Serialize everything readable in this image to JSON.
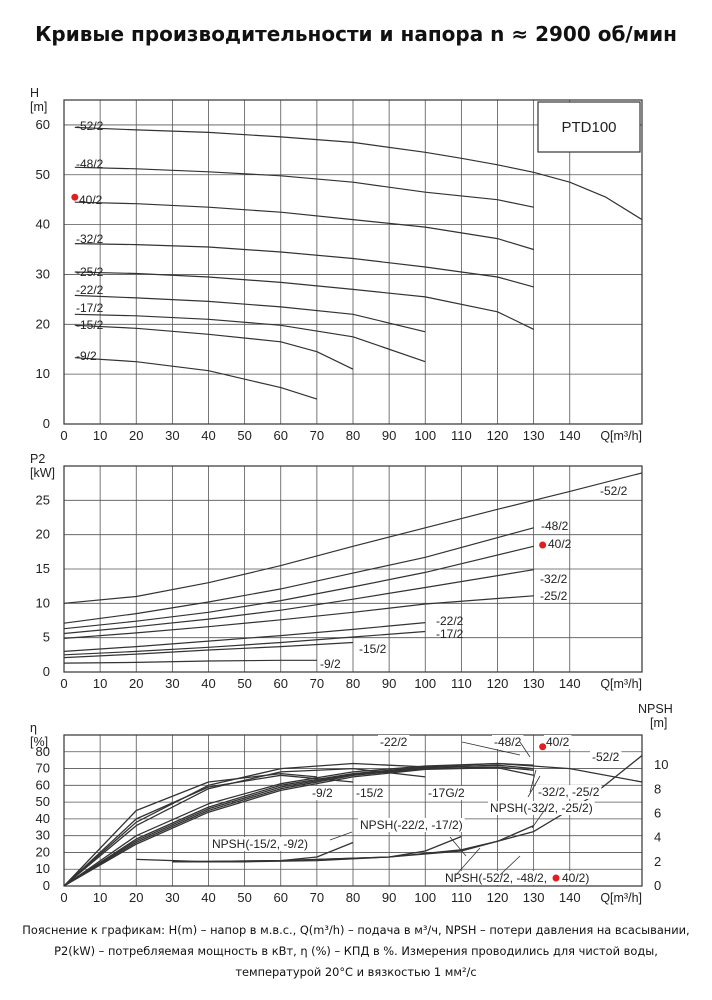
{
  "page_title": "Кривые производительности и напора n ≈ 2900 об/мин",
  "footnote": [
    "Пояснение к графикам: H(m) – напор в м.в.с., Q(m³/h) – подача в м³/ч, NPSH – потери давления на всасывании,",
    "P2(kW) – потребляемая мощность в кВт, η (%) – КПД в %. Измерения проводились для чистой воды,",
    "температурой 20°C и вязкостью 1 мм²/с"
  ],
  "colors": {
    "curve": "#333333",
    "grid": "#555555",
    "highlight": "#e02020"
  },
  "chart_data": [
    {
      "type": "line",
      "panel": "head",
      "ylabel": "H",
      "yunit": "[m]",
      "xlabel": "Q[m³/h]",
      "box_label": "PTD100",
      "xlim": [
        0,
        160
      ],
      "ylim": [
        0,
        65
      ],
      "x_ticks": [
        0,
        10,
        20,
        30,
        40,
        50,
        60,
        70,
        80,
        90,
        100,
        110,
        120,
        130,
        140
      ],
      "y_ticks": [
        0,
        10,
        20,
        30,
        40,
        50,
        60
      ],
      "grid": true,
      "highlight": {
        "label": "40/2",
        "x": 3,
        "y": 45.5
      },
      "series": [
        {
          "name": "-52/2",
          "label": "-52/2",
          "x": [
            3,
            20,
            40,
            60,
            80,
            100,
            110,
            120,
            130,
            140,
            150,
            160
          ],
          "y": [
            59.5,
            59,
            58.5,
            57.6,
            56.5,
            54.5,
            53.3,
            52,
            50.5,
            48.5,
            45.5,
            41
          ]
        },
        {
          "name": "-48/2",
          "label": "-48/2",
          "x": [
            3,
            20,
            40,
            60,
            80,
            100,
            120,
            130
          ],
          "y": [
            51.5,
            51.2,
            50.6,
            49.8,
            48.5,
            46.5,
            45,
            43.5
          ]
        },
        {
          "name": "40/2",
          "label": "40/2",
          "x": [
            3,
            20,
            40,
            60,
            80,
            100,
            120,
            130
          ],
          "y": [
            44.5,
            44.2,
            43.5,
            42.5,
            41,
            39.5,
            37.2,
            35
          ]
        },
        {
          "name": "-32/2",
          "label": "-32/2",
          "x": [
            3,
            20,
            40,
            60,
            80,
            100,
            120,
            130
          ],
          "y": [
            36.2,
            36,
            35.5,
            34.5,
            33.2,
            31.5,
            29.5,
            27.5
          ]
        },
        {
          "name": "-25/2",
          "label": "-25/2",
          "x": [
            3,
            20,
            40,
            60,
            80,
            100,
            120,
            130
          ],
          "y": [
            30.5,
            30.2,
            29.5,
            28.4,
            27,
            25.5,
            22.5,
            19
          ]
        },
        {
          "name": "-22/2",
          "label": "-22/2",
          "x": [
            3,
            20,
            40,
            60,
            80,
            100
          ],
          "y": [
            25.8,
            25.3,
            24.6,
            23.5,
            22,
            18.5
          ]
        },
        {
          "name": "-17/2",
          "label": "-17/2",
          "x": [
            3,
            20,
            40,
            60,
            80,
            100
          ],
          "y": [
            22,
            21.7,
            21,
            19.8,
            17.5,
            12.5
          ]
        },
        {
          "name": "-15/2",
          "label": "-15/2",
          "x": [
            3,
            20,
            40,
            60,
            70,
            80
          ],
          "y": [
            19.8,
            19.2,
            18,
            16.5,
            14.5,
            11
          ]
        },
        {
          "name": "-9/2",
          "label": "-9/2",
          "x": [
            3,
            20,
            40,
            60,
            70
          ],
          "y": [
            13.3,
            12.5,
            10.7,
            7.3,
            5
          ]
        }
      ]
    },
    {
      "type": "line",
      "panel": "power",
      "ylabel": "P2",
      "yunit": "[kW]",
      "xlabel": "Q[m³/h]",
      "xlim": [
        0,
        160
      ],
      "ylim": [
        0,
        30
      ],
      "x_ticks": [
        0,
        10,
        20,
        30,
        40,
        50,
        60,
        70,
        80,
        90,
        100,
        110,
        120,
        130,
        140
      ],
      "y_ticks": [
        0,
        5,
        10,
        15,
        20,
        25
      ],
      "grid": true,
      "highlight": {
        "label": "40/2",
        "x": 132.5,
        "y": 18.5
      },
      "series": [
        {
          "name": "-52/2",
          "label": "-52/2",
          "x": [
            0,
            20,
            40,
            60,
            80,
            100,
            120,
            140,
            160
          ],
          "y": [
            10,
            11,
            13,
            15.5,
            18.3,
            21,
            23.7,
            26.3,
            29
          ]
        },
        {
          "name": "-48/2",
          "label": "-48/2",
          "x": [
            0,
            20,
            40,
            60,
            80,
            100,
            130
          ],
          "y": [
            7.1,
            8.5,
            10.2,
            12.1,
            14.4,
            16.7,
            21
          ]
        },
        {
          "name": "40/2",
          "label": "40/2",
          "x": [
            0,
            20,
            40,
            60,
            80,
            100,
            130
          ],
          "y": [
            6.3,
            7.4,
            8.7,
            10.4,
            12.4,
            14.5,
            18.3
          ]
        },
        {
          "name": "-32/2",
          "label": "-32/2",
          "x": [
            0,
            20,
            40,
            60,
            80,
            100,
            130
          ],
          "y": [
            5.6,
            6.6,
            7.7,
            9,
            10.6,
            12.3,
            14.9
          ]
        },
        {
          "name": "-25/2",
          "label": "-25/2",
          "x": [
            0,
            20,
            40,
            60,
            80,
            100,
            130
          ],
          "y": [
            4.9,
            5.7,
            6.6,
            7.6,
            8.7,
            9.9,
            11.1
          ]
        },
        {
          "name": "-22/2",
          "label": "-22/2",
          "x": [
            0,
            20,
            40,
            60,
            80,
            100
          ],
          "y": [
            3,
            3.7,
            4.5,
            5.3,
            6.2,
            7.2
          ]
        },
        {
          "name": "-17/2",
          "label": "-17/2",
          "x": [
            0,
            20,
            40,
            60,
            80,
            100
          ],
          "y": [
            2.5,
            3,
            3.6,
            4.3,
            5.1,
            5.9
          ]
        },
        {
          "name": "-15/2",
          "label": "-15/2",
          "x": [
            0,
            20,
            40,
            60,
            80
          ],
          "y": [
            2.1,
            2.6,
            3.2,
            3.7,
            4.3
          ]
        },
        {
          "name": "-9/2",
          "label": "-9/2",
          "x": [
            0,
            20,
            40,
            60,
            70
          ],
          "y": [
            1.3,
            1.4,
            1.6,
            1.7,
            1.7
          ]
        }
      ]
    },
    {
      "type": "line",
      "panel": "efficiency",
      "ylabel": "η",
      "yunit": "[%]",
      "xlabel": "Q[m³/h]",
      "y2label": "NPSH",
      "y2unit": "[m]",
      "xlim": [
        0,
        160
      ],
      "ylim": [
        0,
        90
      ],
      "y2lim": [
        0,
        12.5
      ],
      "x_ticks": [
        0,
        10,
        20,
        30,
        40,
        50,
        60,
        70,
        80,
        90,
        100,
        110,
        120,
        130,
        140
      ],
      "y_ticks": [
        0,
        10,
        20,
        30,
        40,
        50,
        60,
        70,
        80
      ],
      "y2_ticks": [
        0,
        2,
        4,
        6,
        8,
        10
      ],
      "grid": true,
      "highlight": {
        "label": "40/2",
        "x": 132.5,
        "y": 83
      },
      "series": [
        {
          "name": "-52/2",
          "x": [
            0,
            20,
            40,
            60,
            80,
            100,
            120,
            140,
            160
          ],
          "y": [
            0,
            30,
            49,
            61,
            68,
            71.5,
            73,
            70,
            62
          ]
        },
        {
          "name": "-48/2",
          "x": [
            0,
            20,
            40,
            60,
            80,
            100,
            120,
            130
          ],
          "y": [
            0,
            28,
            47,
            60,
            67,
            71,
            73,
            72
          ]
        },
        {
          "name": "40/2",
          "x": [
            0,
            20,
            40,
            60,
            80,
            100,
            120,
            130
          ],
          "y": [
            0,
            27,
            46,
            59,
            66.5,
            70.5,
            72,
            70
          ]
        },
        {
          "name": "-32/2",
          "x": [
            0,
            20,
            40,
            60,
            80,
            100,
            120,
            130
          ],
          "y": [
            0,
            26,
            45,
            58,
            66,
            70,
            71,
            69
          ]
        },
        {
          "name": "-25/2",
          "x": [
            0,
            20,
            40,
            60,
            80,
            100,
            120,
            130
          ],
          "y": [
            0,
            25,
            44,
            57,
            65,
            69.5,
            70.5,
            66
          ]
        },
        {
          "name": "-22/2",
          "x": [
            0,
            20,
            40,
            60,
            80,
            100
          ],
          "y": [
            0,
            38,
            60,
            70,
            73,
            71
          ]
        },
        {
          "name": "-17/2",
          "x": [
            0,
            20,
            40,
            60,
            80,
            100
          ],
          "y": [
            0,
            36,
            58,
            68,
            70,
            65
          ]
        },
        {
          "name": "-15/2",
          "x": [
            0,
            20,
            40,
            60,
            80
          ],
          "y": [
            0,
            40,
            59,
            66,
            62
          ]
        },
        {
          "name": "-9/2",
          "x": [
            0,
            20,
            40,
            60,
            70
          ],
          "y": [
            0,
            45,
            62,
            67,
            65
          ]
        }
      ],
      "npsh_series": [
        {
          "name": "NPSH(-15/2, -9/2)",
          "x": [
            20,
            40,
            60,
            70,
            80
          ],
          "y": [
            2.2,
            2,
            2.1,
            2.4,
            3.6
          ]
        },
        {
          "name": "NPSH(-22/2, -17/2)",
          "x": [
            30,
            50,
            70,
            90,
            100,
            110
          ],
          "y": [
            2,
            2,
            2.1,
            2.4,
            2.9,
            4.1
          ]
        },
        {
          "name": "NPSH(-32/2, -25/2)",
          "x": [
            30,
            60,
            90,
            110,
            120,
            130
          ],
          "y": [
            2,
            2.1,
            2.4,
            3,
            3.7,
            5
          ]
        },
        {
          "name": "NPSH(-52/2, -48/2, 40/2)",
          "x": [
            30,
            60,
            90,
            110,
            130,
            145,
            160
          ],
          "y": [
            2,
            2.1,
            2.4,
            2.9,
            4.5,
            7.2,
            10.8
          ]
        }
      ],
      "annotations": [
        "-22/2",
        "-48/2",
        "40/2",
        "-52/2",
        "-9/2",
        "-15/2",
        "-17G/2",
        "-32/2, -25/2",
        "NPSH(-32/2, -25/2)",
        "NPSH(-22/2, -17/2)",
        "NPSH(-15/2, -9/2)",
        "NPSH(-52/2, -48/2,",
        "40/2)"
      ]
    }
  ]
}
